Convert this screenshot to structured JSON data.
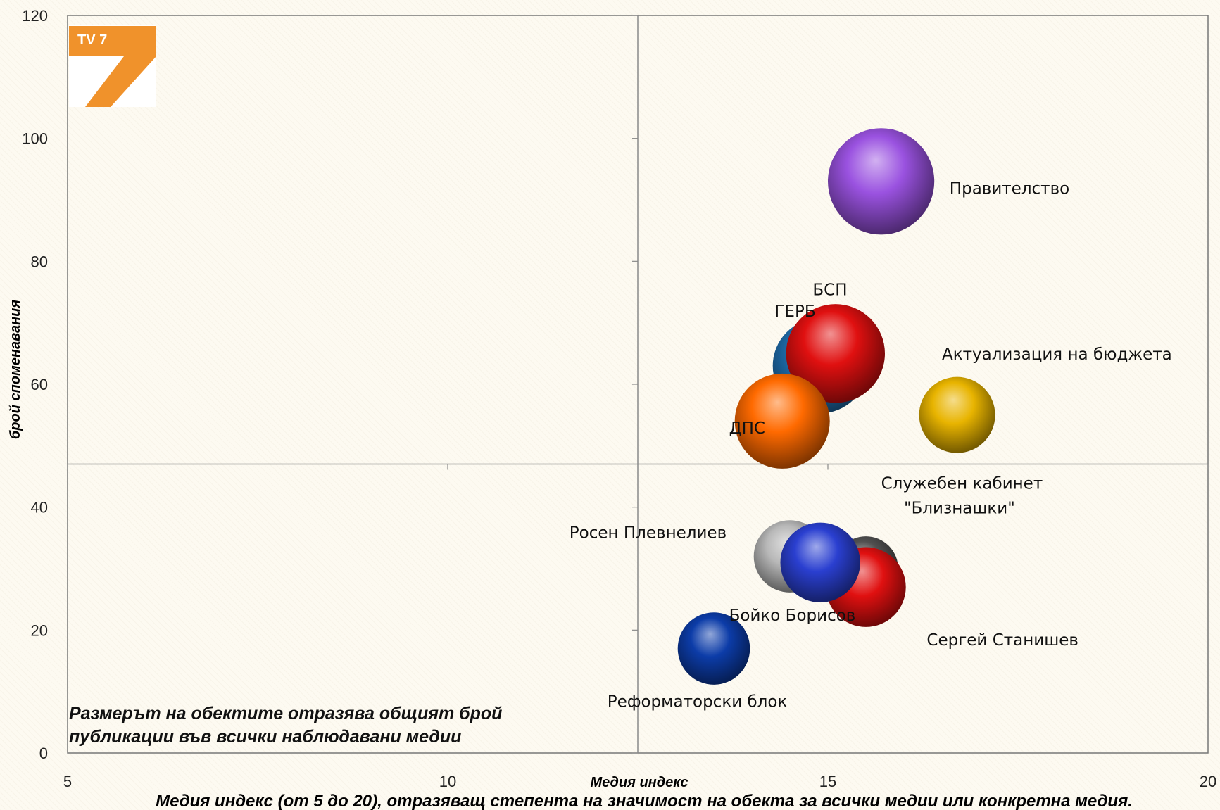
{
  "chart_data": {
    "type": "bubble",
    "xlabel": "Медия индекс",
    "ylabel": "брой споменавания",
    "footnote": "Медия индекс (от 5 до 20), отразяващ степента на значимост на обекта за всички медии или конкретна медия.",
    "note_lines": [
      "Размерът на обектите отразява общият брой",
      "публикации във всички наблюдавани медии"
    ],
    "logo_text": "TV 7",
    "xlim": [
      5,
      20
    ],
    "ylim": [
      0,
      120
    ],
    "x_ticks": [
      5,
      10,
      15,
      20
    ],
    "y_ticks": [
      0,
      20,
      40,
      60,
      80,
      100,
      120
    ],
    "x_tick_labels": [
      "5",
      "10",
      "15",
      "20"
    ],
    "y_tick_labels": [
      "0",
      "20",
      "40",
      "60",
      "80",
      "100",
      "120"
    ],
    "quadrant_lines": {
      "x": 12.5,
      "y": 47
    },
    "series": [
      {
        "name": "Правителство",
        "x": 15.7,
        "y": 93,
        "size": 1.4,
        "color": "#9a52e0"
      },
      {
        "name": "Актуализация на бюджета",
        "x": 16.7,
        "y": 55,
        "size": 1.0,
        "color": "#e8b400"
      },
      {
        "name": "ГЕРБ",
        "x": 14.9,
        "y": 63,
        "size": 1.25,
        "color": "#1f6fb0"
      },
      {
        "name": "БСП",
        "x": 15.1,
        "y": 65,
        "size": 1.3,
        "color": "#e01010"
      },
      {
        "name": "ДПС",
        "x": 14.4,
        "y": 54,
        "size": 1.25,
        "color": "#ff6a00"
      },
      {
        "name": "Служебен кабинет \"Близнашки\"",
        "x": 15.5,
        "y": 30,
        "size": 0.85,
        "color": "#505050"
      },
      {
        "name": "Сергей Станишев",
        "x": 15.5,
        "y": 27,
        "size": 1.05,
        "color": "#e01010"
      },
      {
        "name": "Росен Плевнелиев",
        "x": 14.5,
        "y": 32,
        "size": 0.95,
        "color": "#b8b8b8"
      },
      {
        "name": "Бойко Борисов",
        "x": 14.9,
        "y": 31,
        "size": 1.05,
        "color": "#2a3fd0"
      },
      {
        "name": "Реформаторски блок",
        "x": 13.5,
        "y": 17,
        "size": 0.95,
        "color": "#0c3ca8"
      }
    ],
    "labels": [
      {
        "text": "Правителство",
        "x": 16.6,
        "y": 91
      },
      {
        "text": "Актуализация на бюджета",
        "x": 16.5,
        "y": 64
      },
      {
        "text": "ГЕРБ",
        "x": 14.3,
        "y": 71
      },
      {
        "text": "БСП",
        "x": 14.8,
        "y": 74.5
      },
      {
        "text": "ДПС",
        "x": 13.7,
        "y": 52
      },
      {
        "text": "Служебен кабинет",
        "x": 15.7,
        "y": 43
      },
      {
        "text": "\"Близнашки\"",
        "x": 16.0,
        "y": 39
      },
      {
        "text": "Росен Плевнелиев",
        "x": 11.6,
        "y": 35
      },
      {
        "text": "Бойко Борисов",
        "x": 13.7,
        "y": 21.5
      },
      {
        "text": "Сергей Станишев",
        "x": 16.3,
        "y": 17.5
      },
      {
        "text": "Реформаторски блок",
        "x": 12.1,
        "y": 7.5
      }
    ]
  }
}
